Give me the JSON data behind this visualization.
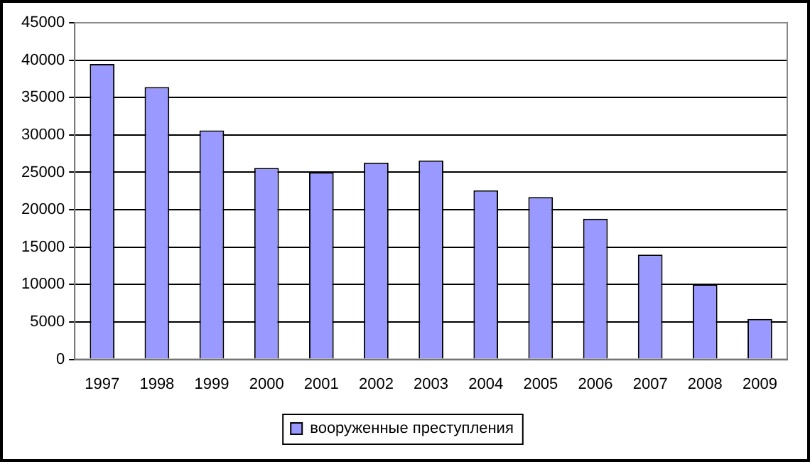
{
  "chart_data": {
    "type": "bar",
    "categories": [
      "1997",
      "1998",
      "1999",
      "2000",
      "2001",
      "2002",
      "2003",
      "2004",
      "2005",
      "2006",
      "2007",
      "2008",
      "2009"
    ],
    "series": [
      {
        "name": "вооруженные преступления",
        "color": "#9999ff",
        "values": [
          39500,
          36400,
          30600,
          25600,
          25000,
          26300,
          26600,
          22600,
          21700,
          18800,
          14000,
          10000,
          5400
        ]
      }
    ],
    "ylim": [
      0,
      45000
    ],
    "yticks": [
      0,
      5000,
      10000,
      15000,
      20000,
      25000,
      30000,
      35000,
      40000,
      45000
    ],
    "grid": "y",
    "legend": "bottom"
  }
}
